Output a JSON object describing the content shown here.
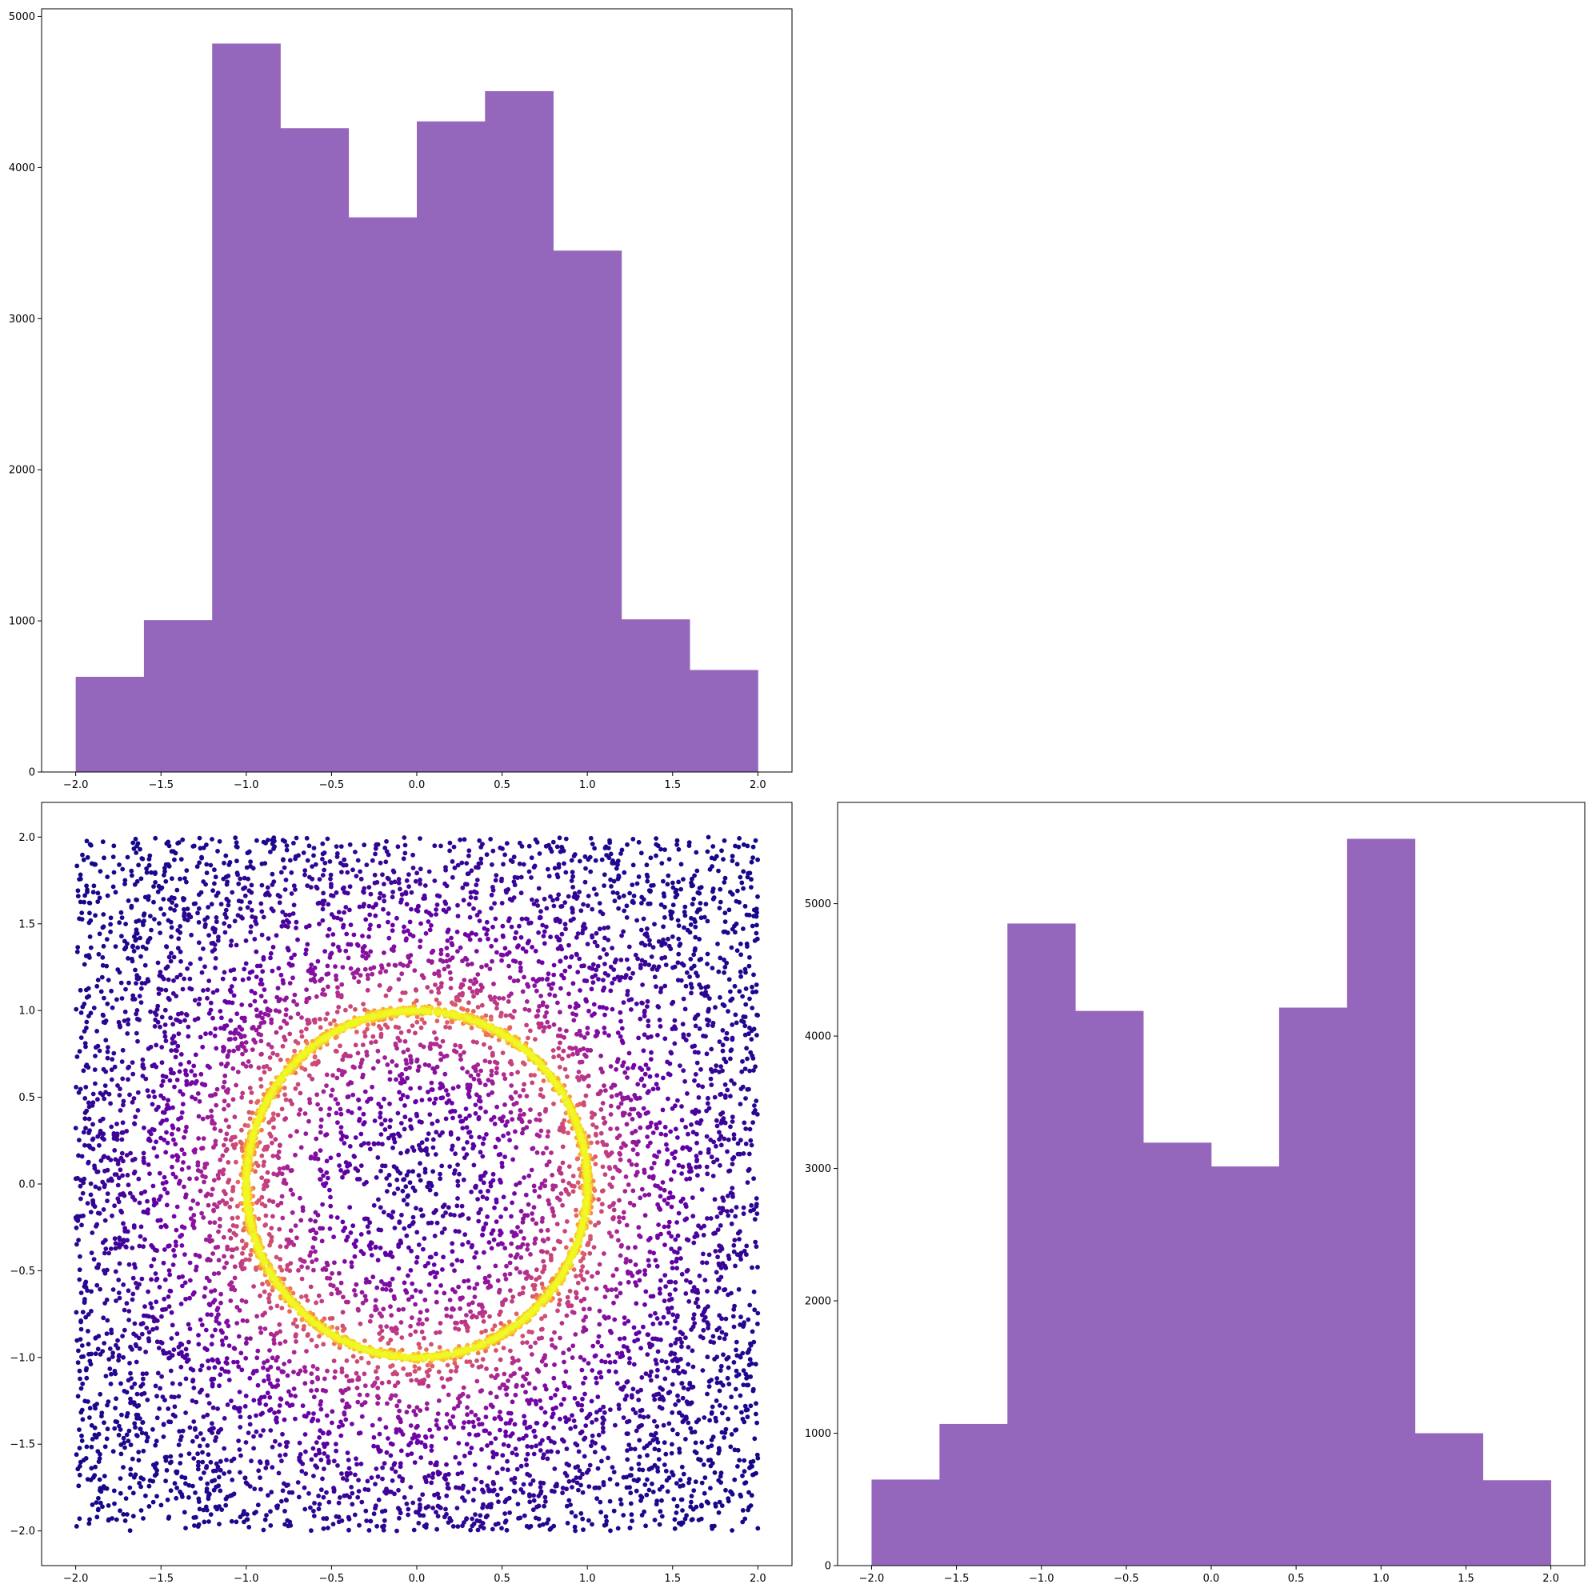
{
  "chart_data": [
    {
      "id": "hist-top",
      "type": "bar",
      "x_bin_edges": [
        -2.0,
        -1.6,
        -1.2,
        -0.8,
        -0.4,
        0.0,
        0.4,
        0.8,
        1.2,
        1.6,
        2.0
      ],
      "values": [
        630,
        1005,
        4820,
        4260,
        3670,
        4305,
        4505,
        3450,
        1010,
        675
      ],
      "xlim": [
        -2.2,
        2.2
      ],
      "ylim": [
        0,
        5050
      ],
      "xticks": [
        -2.0,
        -1.5,
        -1.0,
        -0.5,
        0.0,
        0.5,
        1.0,
        1.5,
        2.0
      ],
      "xtick_labels": [
        "−2.0",
        "−1.5",
        "−1.0",
        "−0.5",
        "0.0",
        "0.5",
        "1.0",
        "1.5",
        "2.0"
      ],
      "yticks": [
        0,
        1000,
        2000,
        3000,
        4000,
        5000
      ],
      "ytick_labels": [
        "0",
        "1000",
        "2000",
        "3000",
        "4000",
        "5000"
      ],
      "color": "#9467bd",
      "grid": false
    },
    {
      "id": "scatter",
      "type": "scatter",
      "description_of_data": "uniform points on [-2,2]x[-2,2] plus dense ring of radius 1 centered at origin, colored by density",
      "xlim": [
        -2.2,
        2.2
      ],
      "ylim": [
        -2.2,
        2.2
      ],
      "ring_radius": 1.0,
      "colormap": [
        "#0d0887",
        "#6a00a8",
        "#b12a90",
        "#e16462",
        "#fca636",
        "#f0f921"
      ],
      "xticks": [
        -2.0,
        -1.5,
        -1.0,
        -0.5,
        0.0,
        0.5,
        1.0,
        1.5,
        2.0
      ],
      "xtick_labels": [
        "−2.0",
        "−1.5",
        "−1.0",
        "−0.5",
        "0.0",
        "0.5",
        "1.0",
        "1.5",
        "2.0"
      ],
      "yticks": [
        -2.0,
        -1.5,
        -1.0,
        -0.5,
        0.0,
        0.5,
        1.0,
        1.5,
        2.0
      ],
      "ytick_labels": [
        "−2.0",
        "−1.5",
        "−1.0",
        "−0.5",
        "0.0",
        "0.5",
        "1.0",
        "1.5",
        "2.0"
      ],
      "grid": false
    },
    {
      "id": "hist-right",
      "type": "bar",
      "x_bin_edges": [
        -2.0,
        -1.6,
        -1.2,
        -0.8,
        -0.4,
        0.0,
        0.4,
        0.8,
        1.2,
        1.6,
        2.0
      ],
      "values": [
        650,
        1070,
        4850,
        4190,
        3195,
        3015,
        4215,
        5490,
        1000,
        645
      ],
      "xlim": [
        -2.2,
        2.2
      ],
      "ylim": [
        0,
        5765
      ],
      "xticks": [
        -2.0,
        -1.5,
        -1.0,
        -0.5,
        0.0,
        0.5,
        1.0,
        1.5,
        2.0
      ],
      "xtick_labels": [
        "−2.0",
        "−1.5",
        "−1.0",
        "−0.5",
        "0.0",
        "0.5",
        "1.0",
        "1.5",
        "2.0"
      ],
      "yticks": [
        0,
        1000,
        2000,
        3000,
        4000,
        5000
      ],
      "ytick_labels": [
        "0",
        "1000",
        "2000",
        "3000",
        "4000",
        "5000"
      ],
      "color": "#9467bd",
      "grid": false
    }
  ]
}
